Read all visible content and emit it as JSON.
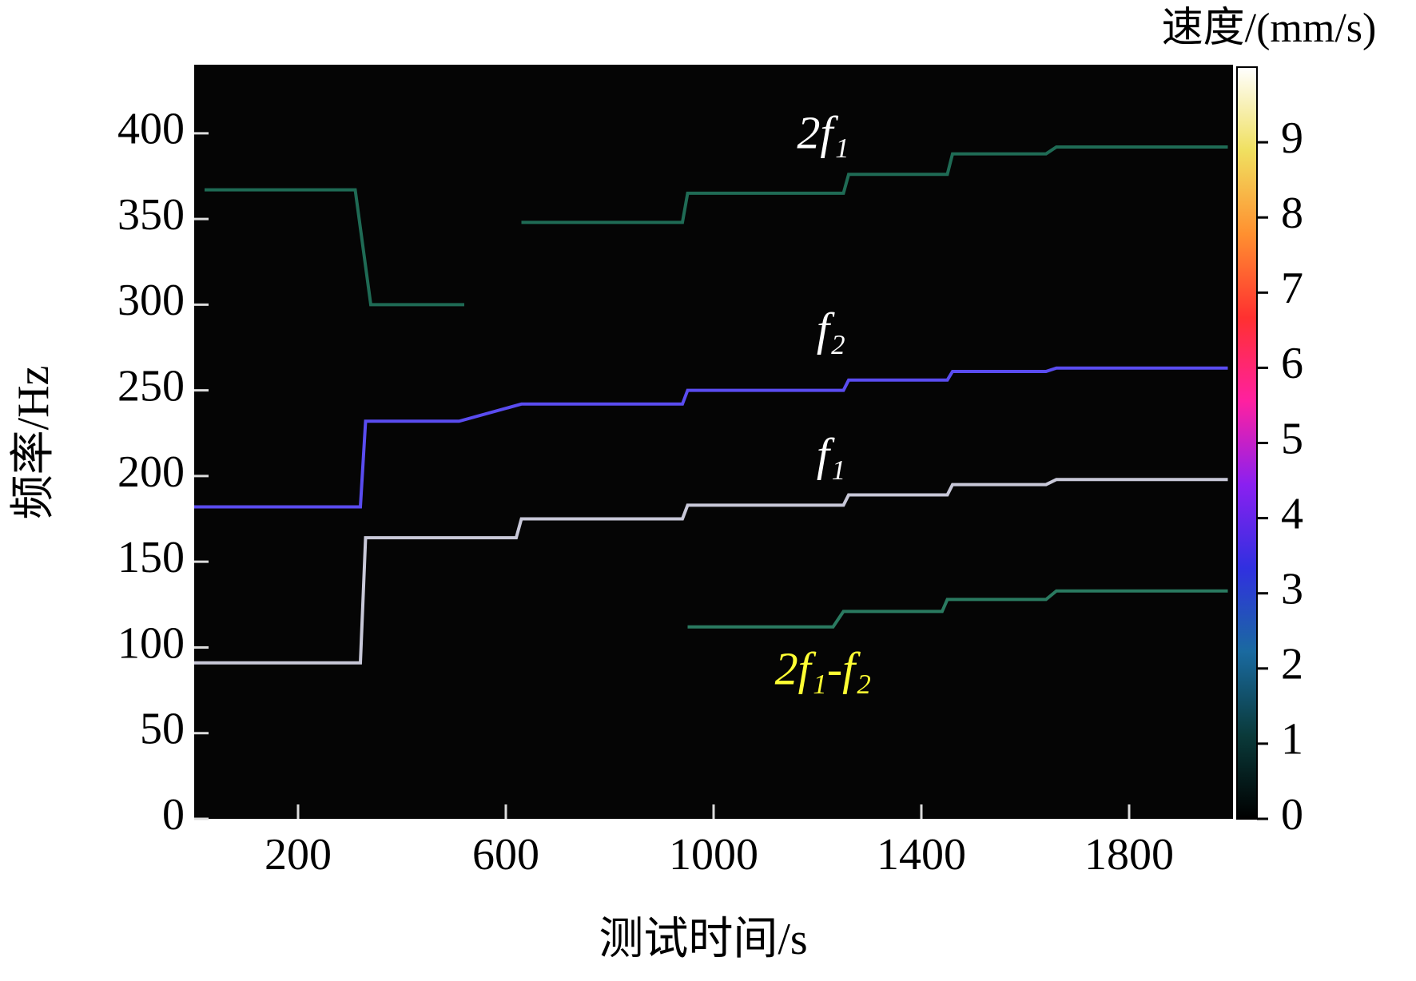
{
  "chart_data": {
    "type": "spectrogram",
    "xlabel": "测试时间/s",
    "ylabel": "频率/Hz",
    "xlim": [
      0,
      2000
    ],
    "xticks": [
      200,
      600,
      1000,
      1400,
      1800
    ],
    "ylim": [
      0,
      440
    ],
    "yticks": [
      0,
      50,
      100,
      150,
      200,
      250,
      300,
      350,
      400
    ],
    "background": "#050505",
    "series": [
      {
        "name": "f₁",
        "color": "#c8c8d8",
        "label_color": "#ffffff",
        "x": [
          0,
          320,
          330,
          620,
          630,
          940,
          950,
          1250,
          1260,
          1450,
          1460,
          1640,
          1660,
          1990
        ],
        "values": [
          91,
          91,
          164,
          164,
          175,
          175,
          183,
          183,
          189,
          189,
          195,
          195,
          198,
          198
        ]
      },
      {
        "name": "f₂",
        "color": "#5a4cf0",
        "label_color": "#ffffff",
        "x": [
          0,
          320,
          330,
          510,
          630,
          940,
          950,
          1250,
          1260,
          1450,
          1460,
          1640,
          1660,
          1990
        ],
        "values": [
          182,
          182,
          232,
          232,
          242,
          242,
          250,
          250,
          256,
          256,
          261,
          261,
          263,
          263
        ]
      },
      {
        "name": "2f₁",
        "color": "#1f6b55",
        "label_color": "#ffffff",
        "x": [
          20,
          310,
          340,
          520,
          null,
          630,
          940,
          950,
          1250,
          1260,
          1450,
          1460,
          1640,
          1660,
          1990
        ],
        "values": [
          367,
          367,
          300,
          300,
          null,
          348,
          348,
          365,
          365,
          376,
          376,
          388,
          388,
          392,
          392
        ]
      },
      {
        "name": "2f₁-f₂",
        "color": "#2a7a60",
        "label_color": "#ffff33",
        "x": [
          950,
          1230,
          1250,
          1440,
          1450,
          1640,
          1660,
          1990
        ],
        "values": [
          112,
          112,
          121,
          121,
          128,
          128,
          133,
          133
        ]
      }
    ],
    "colorbar": {
      "label": "速度/(mm/s)",
      "lim": [
        0,
        10
      ],
      "ticks": [
        0,
        1,
        2,
        3,
        4,
        5,
        6,
        7,
        8,
        9
      ],
      "colors": [
        "#000000",
        "#0a3a3a",
        "#1a6aa0",
        "#3030e0",
        "#8a20f0",
        "#ff20a0",
        "#ff3030",
        "#ff9030",
        "#f0e060",
        "#ffffff"
      ]
    }
  }
}
